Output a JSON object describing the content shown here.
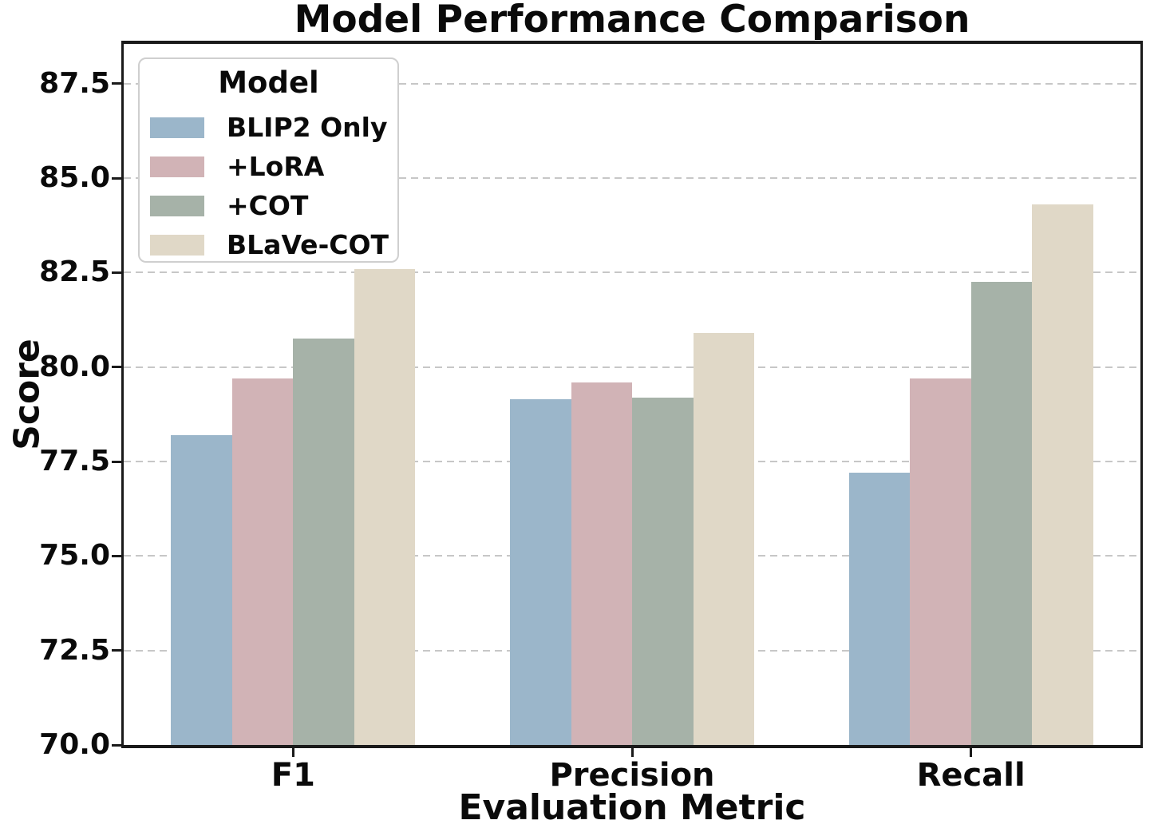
{
  "chart_data": {
    "type": "bar",
    "title": "Model Performance Comparison",
    "xlabel": "Evaluation Metric",
    "ylabel": "Score",
    "categories": [
      "F1",
      "Precision",
      "Recall"
    ],
    "series": [
      {
        "name": "BLIP2 Only",
        "color": "#9BB6CA",
        "values": [
          78.2,
          79.15,
          77.2
        ]
      },
      {
        "name": "+LoRA",
        "color": "#D1B3B6",
        "values": [
          79.7,
          79.6,
          79.7
        ]
      },
      {
        "name": "+COT",
        "color": "#A6B2A8",
        "values": [
          80.75,
          79.2,
          82.25
        ]
      },
      {
        "name": "BLaVe-COT",
        "color": "#E0D8C7",
        "values": [
          82.6,
          80.9,
          84.3
        ]
      }
    ],
    "ylim": [
      70.0,
      88.55
    ],
    "yticks": [
      70.0,
      72.5,
      75.0,
      77.5,
      80.0,
      82.5,
      85.0,
      87.5
    ],
    "ytick_labels": [
      "70.0",
      "72.5",
      "75.0",
      "77.5",
      "80.0",
      "82.5",
      "85.0",
      "87.5"
    ],
    "legend": {
      "title": "Model",
      "position": "upper left"
    },
    "grid": "horizontal dashed",
    "colors": {
      "text": "#0a0a0a",
      "spine": "#1a1a1a",
      "gridline": "#c7c7c7",
      "legend_border": "#cfcfcf",
      "background": "#ffffff"
    }
  }
}
